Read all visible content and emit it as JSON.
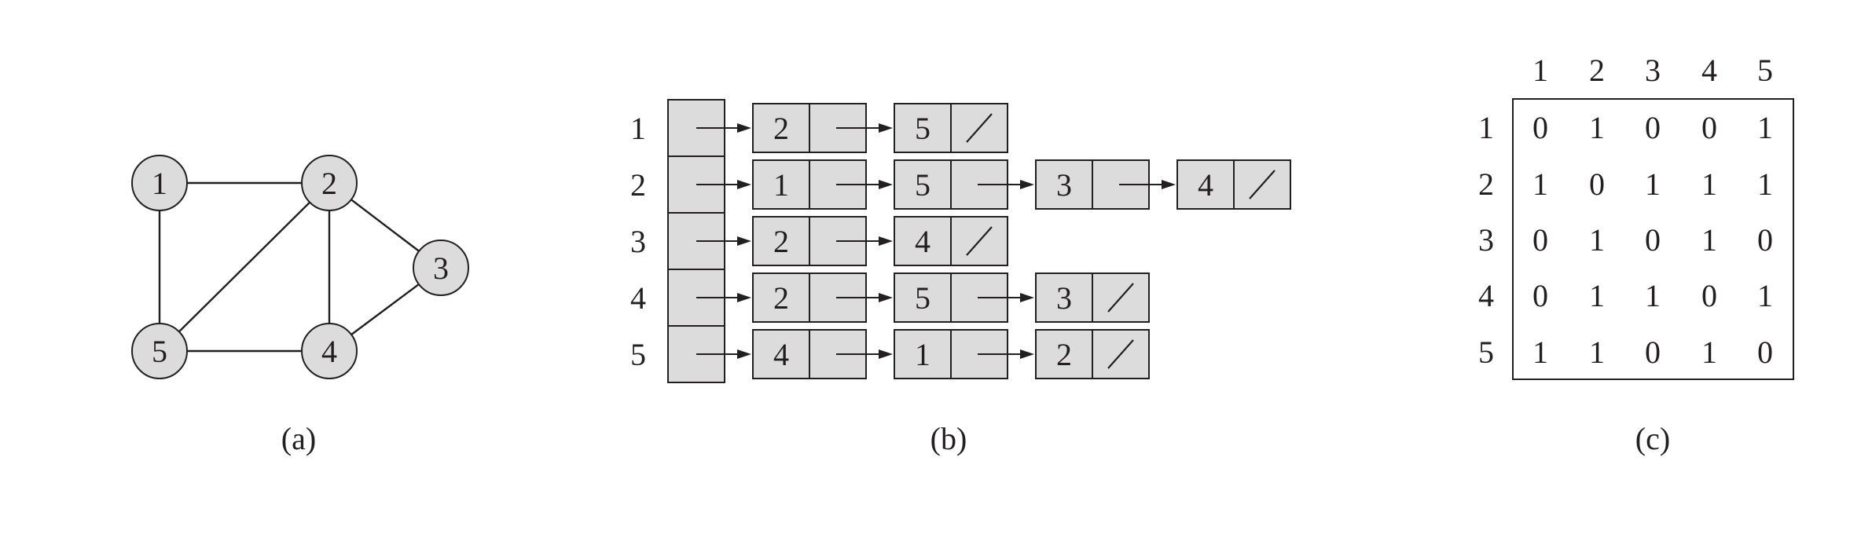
{
  "colors": {
    "node_fill": "#dcdcdc",
    "stroke": "#231f20",
    "background": "#ffffff"
  },
  "graph": {
    "caption": "(a)",
    "nodes": [
      "1",
      "2",
      "3",
      "4",
      "5"
    ],
    "edges": [
      [
        "1",
        "2"
      ],
      [
        "1",
        "5"
      ],
      [
        "2",
        "5"
      ],
      [
        "2",
        "4"
      ],
      [
        "2",
        "3"
      ],
      [
        "3",
        "4"
      ],
      [
        "4",
        "5"
      ]
    ]
  },
  "adjacency_list": {
    "caption": "(b)",
    "rows": [
      {
        "label": "1",
        "items": [
          "2",
          "5"
        ]
      },
      {
        "label": "2",
        "items": [
          "1",
          "5",
          "3",
          "4"
        ]
      },
      {
        "label": "3",
        "items": [
          "2",
          "4"
        ]
      },
      {
        "label": "4",
        "items": [
          "2",
          "5",
          "3"
        ]
      },
      {
        "label": "5",
        "items": [
          "4",
          "1",
          "2"
        ]
      }
    ]
  },
  "adjacency_matrix": {
    "caption": "(c)",
    "col_labels": [
      "1",
      "2",
      "3",
      "4",
      "5"
    ],
    "row_labels": [
      "1",
      "2",
      "3",
      "4",
      "5"
    ],
    "values": [
      [
        "0",
        "1",
        "0",
        "0",
        "1"
      ],
      [
        "1",
        "0",
        "1",
        "1",
        "1"
      ],
      [
        "0",
        "1",
        "0",
        "1",
        "0"
      ],
      [
        "0",
        "1",
        "1",
        "0",
        "1"
      ],
      [
        "1",
        "1",
        "0",
        "1",
        "0"
      ]
    ]
  }
}
